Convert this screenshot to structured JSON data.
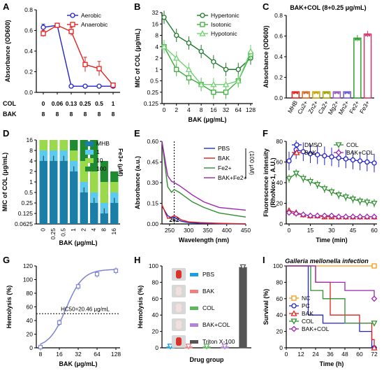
{
  "panels": {
    "A": {
      "letter": "A",
      "chart_data": {
        "type": "line",
        "xlabel": "",
        "ylabel": "Absorbance (OD600)",
        "ylim": [
          0,
          0.8
        ],
        "yticks": [
          0.0,
          0.2,
          0.4,
          0.6,
          0.8
        ],
        "row_labels": [
          "COL",
          "BAK"
        ],
        "COL": [
          "0",
          "0.06",
          "0.13",
          "0.25",
          "0.5",
          "1"
        ],
        "BAK": [
          "8",
          "8",
          "8",
          "8",
          "8",
          "8"
        ],
        "series": [
          {
            "name": "Aerobic",
            "color": "#2222cc",
            "marker": "circle",
            "values": [
              0.63,
              0.65,
              0.06,
              0.06,
              0.06,
              0.06
            ],
            "err": [
              0.03,
              0.02,
              0.005,
              0.005,
              0.005,
              0.005
            ]
          },
          {
            "name": "Anaerobic",
            "color": "#e0201e",
            "marker": "square",
            "values": [
              0.57,
              0.65,
              0.59,
              0.27,
              0.23,
              0.07
            ],
            "err": [
              0.03,
              0.02,
              0.04,
              0.07,
              0.07,
              0.01
            ]
          }
        ]
      }
    },
    "B": {
      "letter": "B",
      "chart_data": {
        "type": "line",
        "xlabel": "BAK (μg/mL)",
        "ylabel": "MIC of COL (μg/mL)",
        "x": [
          "0",
          "2",
          "4",
          "8",
          "16",
          "32",
          "64",
          "128"
        ],
        "yscale": "log2",
        "yticks": [
          "32",
          "16",
          "8",
          "4",
          "2",
          "1",
          "0.5",
          "0.25",
          "0.125"
        ],
        "ylim": [
          0.125,
          32
        ],
        "series": [
          {
            "name": "Hypertonic",
            "color": "#1e7a2a",
            "marker": "circle",
            "values": [
              24,
              8,
              5,
              3,
              1.6,
              1,
              1,
              2
            ]
          },
          {
            "name": "Isotonic",
            "color": "#3fae3f",
            "marker": "square",
            "values": [
              4,
              1,
              0.6,
              0.4,
              0.25,
              0.25,
              0.5,
              2.5
            ]
          },
          {
            "name": "Hypotonic",
            "color": "#6fd26f",
            "marker": "triangle",
            "values": [
              4,
              2,
              1,
              0.4,
              0.4,
              0.4,
              0.5,
              3
            ]
          }
        ]
      }
    },
    "C": {
      "letter": "C",
      "chart_data": {
        "type": "bar",
        "title": "BAK+COL (8+0.25 μg/mL)",
        "ylabel": "Absorbance (OD600)",
        "ylim": [
          0,
          0.8
        ],
        "yticks": [
          0.0,
          0.2,
          0.4,
          0.6,
          0.8
        ],
        "categories": [
          "MHB",
          "Cu2+",
          "Zn2+",
          "Ca2+",
          "Mg2+",
          "Mn2+",
          "Fe2+",
          "Fe3+"
        ],
        "values": [
          0.06,
          0.06,
          0.06,
          0.06,
          0.06,
          0.06,
          0.58,
          0.62
        ],
        "colors": [
          "#e0201e",
          "#d2691e",
          "#c8a400",
          "#a0a000",
          "#9b59b6",
          "#6a5acd",
          "#2ca02c",
          "#d6336c"
        ]
      }
    },
    "D": {
      "letter": "D",
      "chart_data": {
        "type": "bar",
        "xlabel": "BAK (μg/mL)",
        "ylabel": "MIC of COL (μg/mL)",
        "yscale": "log2",
        "yticks": [
          "16",
          "8",
          "4",
          "2",
          "1",
          "0.5",
          "0.25",
          "0.125",
          "0.0625"
        ],
        "categories": [
          "0",
          "0.25",
          "0.5",
          "1",
          "2",
          "4",
          "8",
          "16"
        ],
        "legend_title": "Fe3+ (μM)",
        "series": [
          {
            "name": "MHB",
            "color": "#1a7fa8",
            "values": [
              4,
              4,
              4,
              2,
              0.5,
              0.25,
              0.125,
              0.25
            ]
          },
          {
            "name": "1",
            "color": "#5bcaf0",
            "values": [
              8,
              8,
              8,
              4,
              1,
              0.5,
              0.25,
              0.5
            ]
          },
          {
            "name": "10",
            "color": "#9ad94a",
            "values": [
              16,
              16,
              16,
              8,
              4,
              2,
              1,
              1
            ]
          },
          {
            "name": "100",
            "color": "#1e8a32",
            "values": [
              16,
              16,
              16,
              16,
              16,
              16,
              4,
              2
            ]
          }
        ]
      }
    },
    "E": {
      "letter": "E",
      "chart_data": {
        "type": "line",
        "xlabel": "Wavelength (nm)",
        "ylabel": "Absorbance (a.u.)",
        "xlim": [
          230,
          450
        ],
        "ylim": [
          0,
          0.6
        ],
        "xticks": [
          250,
          300,
          350,
          400,
          450
        ],
        "yticks": [
          0.0,
          0.15,
          0.3,
          0.45,
          0.6
        ],
        "marker_line": "262",
        "bracket_label": "(100 μM)",
        "series": [
          {
            "name": "PBS",
            "color": "#1f2fd6",
            "x": [
              230,
              245,
              255,
              262,
              270,
              280,
              300,
              330,
              380,
              450
            ],
            "values": [
              0.13,
              0.06,
              0.045,
              0.05,
              0.035,
              0.02,
              0.01,
              0.005,
              0.002,
              0.0
            ]
          },
          {
            "name": "BAK",
            "color": "#e0201e",
            "x": [
              230,
              245,
              255,
              262,
              270,
              280,
              300,
              330,
              380,
              450
            ],
            "values": [
              0.14,
              0.04,
              0.05,
              0.06,
              0.05,
              0.03,
              0.015,
              0.01,
              0.005,
              0.0
            ]
          },
          {
            "name": "Fe2+",
            "color": "#2f8f2f",
            "x": [
              230,
              245,
              255,
              262,
              275,
              290,
              310,
              340,
              380,
              450
            ],
            "values": [
              0.6,
              0.27,
              0.23,
              0.25,
              0.23,
              0.2,
              0.16,
              0.12,
              0.08,
              0.05
            ]
          },
          {
            "name": "BAK+Fe2+",
            "color": "#9c27b0",
            "x": [
              230,
              245,
              255,
              262,
              275,
              290,
              310,
              340,
              380,
              450
            ],
            "values": [
              0.6,
              0.35,
              0.31,
              0.3,
              0.28,
              0.25,
              0.21,
              0.16,
              0.12,
              0.1
            ]
          }
        ]
      }
    },
    "F": {
      "letter": "F",
      "chart_data": {
        "type": "line",
        "xlabel": "Time (min)",
        "ylabel": "Fluorescence intensity (RhoNox-1, A.U.)",
        "xlim": [
          0,
          60
        ],
        "ylim": [
          0,
          80
        ],
        "xticks": [
          0,
          15,
          30,
          45,
          60
        ],
        "yticks": [
          0,
          20,
          40,
          60,
          80
        ],
        "x": [
          0,
          5,
          10,
          15,
          20,
          25,
          30,
          35,
          40,
          45,
          50,
          55,
          60
        ],
        "series": [
          {
            "name": "DMSO",
            "color": "#2222cc",
            "marker": "circle",
            "values": [
              61,
              72,
              70,
              68,
              67,
              66,
              65,
              64,
              63,
              62,
              61,
              60,
              59
            ]
          },
          {
            "name": "COL",
            "color": "#2f8f2f",
            "marker": "triangle-down",
            "values": [
              44,
              49,
              44,
              41,
              38,
              34,
              31,
              28,
              26,
              24,
              22,
              21,
              20
            ]
          },
          {
            "name": "BAK",
            "color": "#e0201e",
            "marker": "triangle",
            "values": [
              13,
              11,
              9,
              8,
              8,
              7,
              7,
              7,
              7,
              7,
              7,
              7,
              7
            ]
          },
          {
            "name": "BAK+COL",
            "color": "#9c27b0",
            "marker": "diamond",
            "values": [
              11,
              10,
              9,
              8,
              8,
              8,
              8,
              7,
              7,
              7,
              7,
              7,
              7
            ]
          }
        ]
      }
    },
    "G": {
      "letter": "G",
      "chart_data": {
        "type": "scatter",
        "xlabel": "BAK (μg/mL)",
        "ylabel": "Hemolysis (%)",
        "xscale": "log2",
        "xticks": [
          "8",
          "16",
          "32",
          "64",
          "128"
        ],
        "ylim": [
          0,
          120
        ],
        "yticks": [
          0,
          20,
          40,
          60,
          80,
          100,
          120
        ],
        "x": [
          8,
          16,
          32,
          64,
          128
        ],
        "values": [
          1,
          37,
          90,
          108,
          113
        ],
        "annotation": "HC50=20.46 μg/mL",
        "color": "#7c83d4"
      }
    },
    "H": {
      "letter": "H",
      "chart_data": {
        "type": "bar",
        "xlabel": "Drug group",
        "ylabel": "Hemolysis (%)",
        "ylim": [
          0,
          100
        ],
        "yticks": [
          0,
          20,
          40,
          60,
          80,
          100
        ],
        "categories": [
          "PBS",
          "BAK",
          "COL",
          "BAK+COL",
          "Triton X-100"
        ],
        "values": [
          1,
          1,
          1,
          1,
          98
        ],
        "colors": [
          "#1a9fe0",
          "#f08080",
          "#5cb85c",
          "#b084d6",
          "#555555"
        ]
      }
    },
    "I": {
      "letter": "I",
      "chart_data": {
        "type": "line",
        "title": "Galleria mellonella infection",
        "xlabel": "Time (h)",
        "ylabel": "Survival (%)",
        "xlim": [
          0,
          72
        ],
        "ylim": [
          0,
          100
        ],
        "xticks": [
          0,
          12,
          24,
          36,
          48,
          60,
          72
        ],
        "yticks": [
          0,
          20,
          40,
          60,
          80,
          100
        ],
        "series": [
          {
            "name": "NC",
            "color": "#f39c12",
            "marker": "square",
            "x": [
              0,
              72
            ],
            "values": [
              100,
              100
            ]
          },
          {
            "name": "PC",
            "color": "#2222cc",
            "marker": "circle",
            "x": [
              0,
              18,
              24,
              30,
              60,
              70,
              72
            ],
            "values": [
              100,
              40,
              40,
              30,
              20,
              0,
              0
            ]
          },
          {
            "name": "BAK",
            "color": "#e0201e",
            "marker": "triangle",
            "x": [
              0,
              24,
              36,
              60,
              70,
              72
            ],
            "values": [
              100,
              80,
              40,
              30,
              10,
              0
            ]
          },
          {
            "name": "COL",
            "color": "#2f8f2f",
            "marker": "triangle-down",
            "x": [
              0,
              20,
              30,
              48,
              72
            ],
            "values": [
              100,
              70,
              60,
              30,
              30
            ]
          },
          {
            "name": "BAK+COL",
            "color": "#9c27b0",
            "marker": "diamond",
            "x": [
              0,
              24,
              48,
              72
            ],
            "values": [
              100,
              80,
              70,
              60
            ]
          }
        ]
      }
    }
  }
}
